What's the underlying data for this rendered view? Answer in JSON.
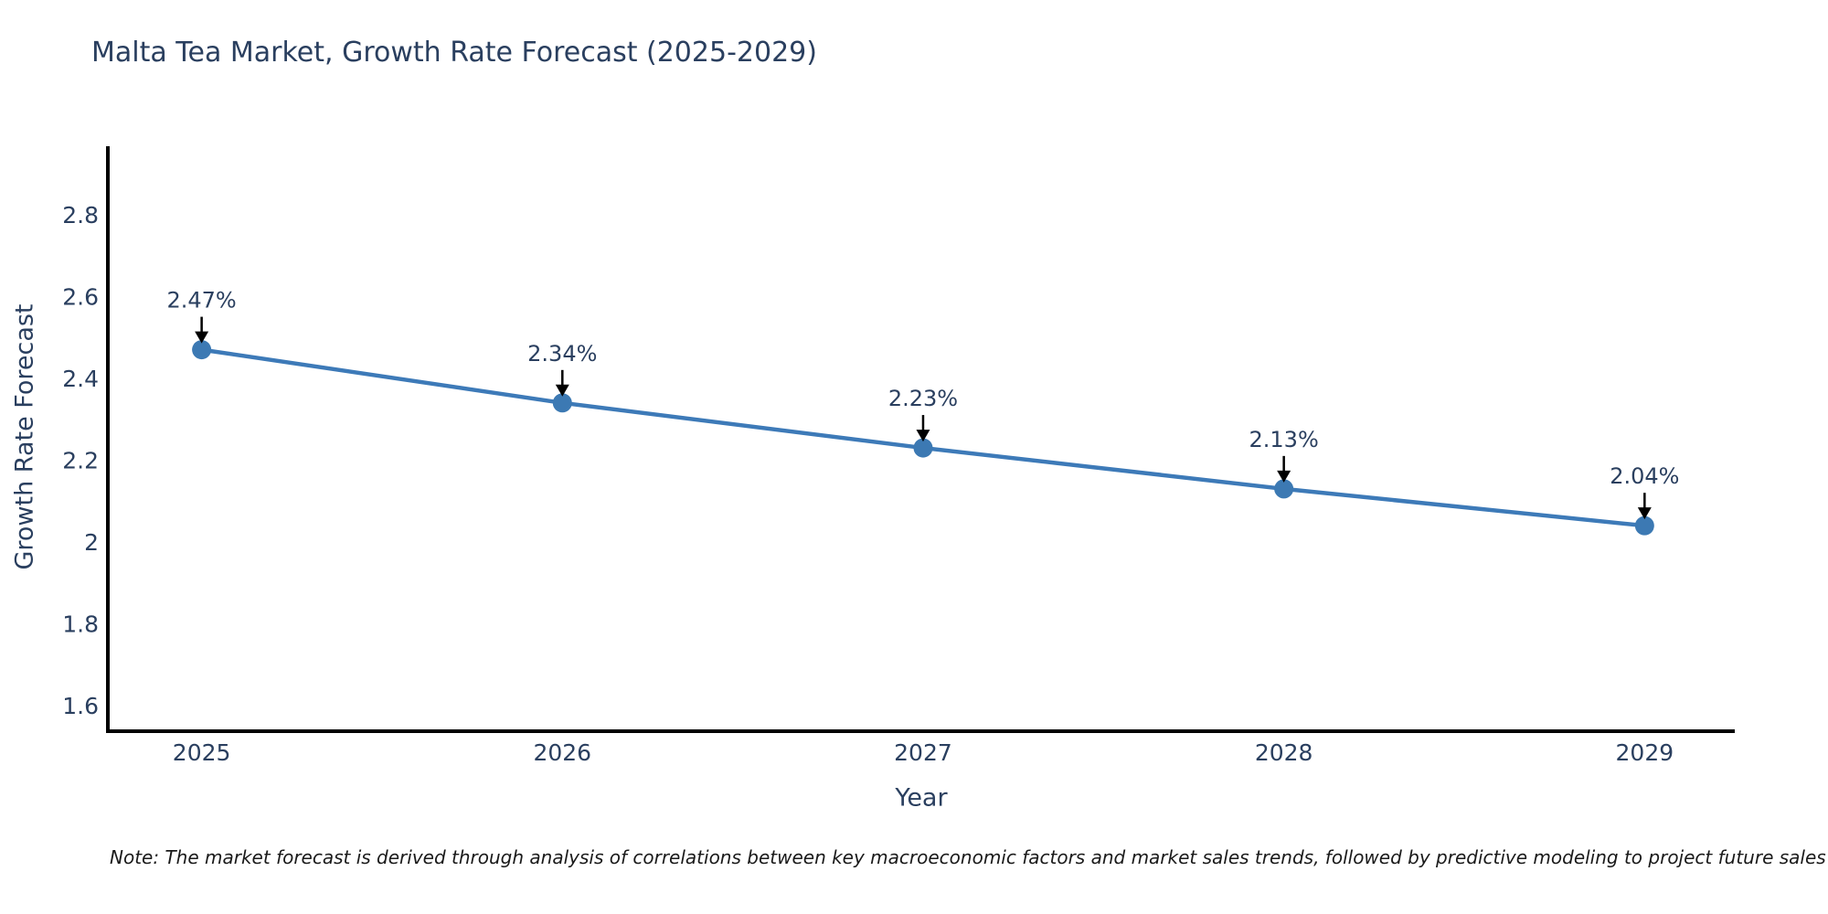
{
  "chart_data": {
    "type": "line",
    "title": "Malta Tea Market, Growth Rate Forecast (2025-2029)",
    "xlabel": "Year",
    "ylabel": "Growth Rate Forecast",
    "categories": [
      "2025",
      "2026",
      "2027",
      "2028",
      "2029"
    ],
    "x": [
      2025,
      2026,
      2027,
      2028,
      2029
    ],
    "series": [
      {
        "name": "Growth Rate Forecast",
        "values": [
          2.47,
          2.34,
          2.23,
          2.13,
          2.04
        ],
        "point_labels": [
          "2.47%",
          "2.34%",
          "2.23%",
          "2.13%",
          "2.04%"
        ]
      }
    ],
    "ytick_labels": [
      "2.8",
      "2.6",
      "2.4",
      "2.2",
      "2",
      "1.8",
      "1.6"
    ],
    "yticks": [
      2.8,
      2.6,
      2.4,
      2.2,
      2.0,
      1.8,
      1.6
    ],
    "xlim": [
      2024.74,
      2029.25
    ],
    "ylim": [
      1.538,
      2.967
    ],
    "grid": false,
    "legend": false,
    "annotations": "down-arrow from each percent label to its data point",
    "colors": {
      "line": "#3d7ab8",
      "marker": "#3c79b3",
      "axis": "#000000",
      "text": "#2a3f5f",
      "annotation_arrow": "#000000",
      "note_text": "#1a1a1a",
      "background": "#ffffff"
    }
  },
  "footnote": {
    "text": "Note: The market forecast is derived through analysis of correlations between key macroeconomic factors and market sales trends, followed by predictive modeling to project future sales"
  }
}
